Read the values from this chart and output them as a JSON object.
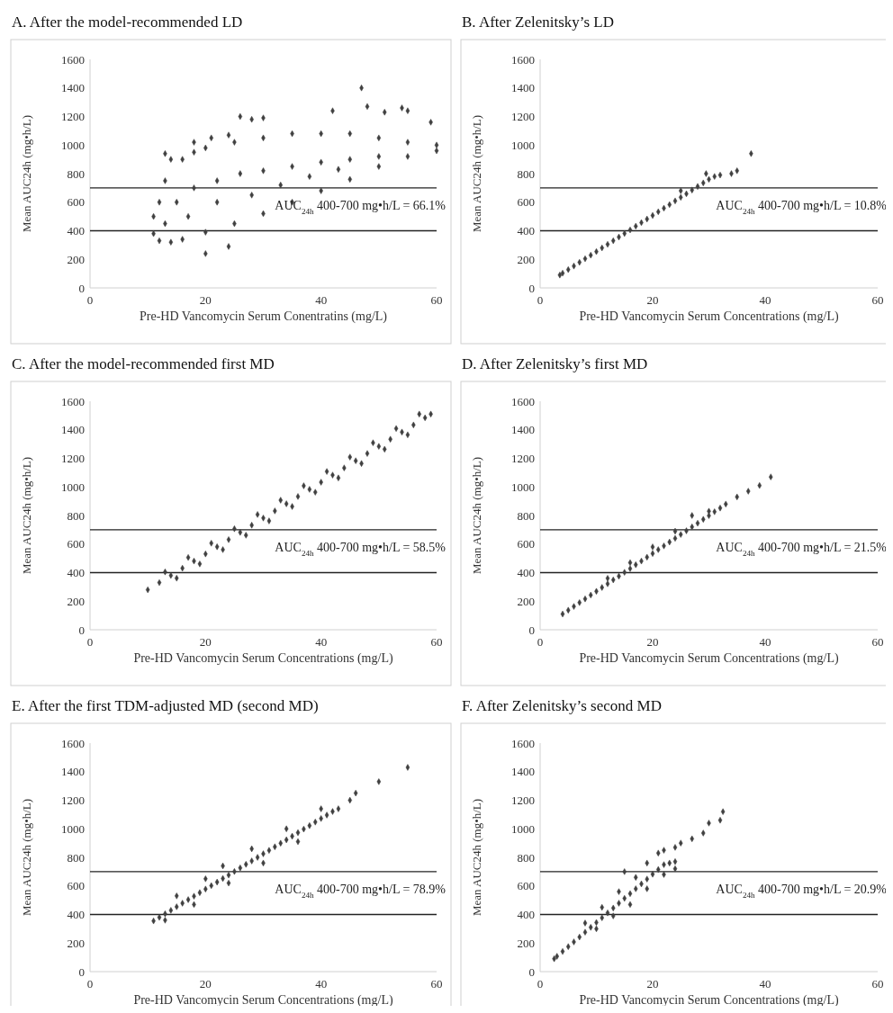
{
  "chart_data": [
    {
      "type": "scatter",
      "title": "A.  After the model-recommended LD",
      "xlabel": "Pre-HD Vancomycin Serum Conentratins (mg/L)",
      "ylabel": "Mean AUC24h (mg•h/L)",
      "xlim": [
        0,
        60
      ],
      "xticks": [
        0,
        20,
        40,
        60
      ],
      "ylim": [
        0,
        1600
      ],
      "yticks": [
        0,
        200,
        400,
        600,
        800,
        1000,
        1200,
        1400,
        1600
      ],
      "marker": "diamond",
      "grid": false,
      "annotations": [
        "AUC$_{24h}$ 400-700 mg•h/L = 66.1%"
      ],
      "ref_lines": [
        {
          "axis": "y",
          "value": 700,
          "color": "#222222"
        },
        {
          "axis": "y",
          "value": 400,
          "color": "#222222"
        }
      ],
      "series": [
        {
          "color": "#404040",
          "x": [
            11,
            12,
            14,
            16,
            20,
            25,
            30,
            35,
            40,
            45,
            50,
            55,
            60,
            11,
            12,
            13,
            14,
            16,
            18,
            20,
            25,
            30,
            35,
            40,
            45,
            50,
            55,
            60,
            20,
            24,
            47,
            26,
            28,
            30,
            42,
            48,
            51,
            54,
            55,
            59,
            18,
            21,
            24,
            13,
            15,
            18,
            22,
            26,
            30,
            35,
            40,
            45,
            50,
            13,
            17,
            22,
            28,
            33,
            38,
            43
          ],
          "values": [
            380,
            330,
            320,
            340,
            390,
            450,
            520,
            600,
            680,
            760,
            850,
            920,
            960,
            500,
            600,
            750,
            900,
            900,
            950,
            980,
            1020,
            1050,
            1080,
            1080,
            1080,
            1050,
            1020,
            1000,
            240,
            290,
            1400,
            1200,
            1180,
            1190,
            1240,
            1270,
            1230,
            1260,
            1240,
            1160,
            1020,
            1050,
            1070,
            940,
            600,
            700,
            750,
            800,
            820,
            850,
            880,
            900,
            920,
            450,
            500,
            600,
            650,
            720,
            780,
            830
          ]
        }
      ]
    },
    {
      "type": "scatter",
      "title": "B.  After Zelenitsky’s LD",
      "xlabel": "Pre-HD Vancomycin Serum Concentrations (mg/L)",
      "ylabel": "Mean AUC24h (mg•h/L)",
      "xlim": [
        0,
        60
      ],
      "xticks": [
        0,
        20,
        40,
        60
      ],
      "ylim": [
        0,
        1600
      ],
      "yticks": [
        0,
        200,
        400,
        600,
        800,
        1000,
        1200,
        1400,
        1600
      ],
      "marker": "diamond",
      "grid": false,
      "annotations": [
        "AUC$_{24h}$ 400-700 mg•h/L = 10.8%"
      ],
      "ref_lines": [
        {
          "axis": "y",
          "value": 700,
          "color": "#222222"
        },
        {
          "axis": "y",
          "value": 400,
          "color": "#222222"
        }
      ],
      "series": [
        {
          "color": "#404040",
          "x": [
            3.5,
            4,
            5,
            6,
            7,
            8,
            9,
            10,
            11,
            12,
            13,
            14,
            15,
            16,
            17,
            18,
            19,
            20,
            21,
            22,
            23,
            24,
            25,
            26,
            27,
            28,
            29,
            30,
            31,
            32,
            34,
            35,
            37.5,
            29.5,
            25
          ],
          "values": [
            90,
            103,
            128,
            153,
            179,
            204,
            229,
            254,
            280,
            305,
            330,
            356,
            381,
            406,
            432,
            457,
            482,
            507,
            533,
            558,
            583,
            609,
            634,
            659,
            685,
            710,
            735,
            760,
            780,
            790,
            800,
            820,
            940,
            800,
            680
          ]
        }
      ]
    },
    {
      "type": "scatter",
      "title": "C.  After the model-recommended first MD",
      "xlabel": "Pre-HD Vancomycin Serum Concentrations (mg/L)",
      "ylabel": "Mean AUC24h (mg•h/L)",
      "xlim": [
        0,
        60
      ],
      "xticks": [
        0,
        20,
        40,
        60
      ],
      "ylim": [
        0,
        1600
      ],
      "yticks": [
        0,
        200,
        400,
        600,
        800,
        1000,
        1200,
        1400,
        1600
      ],
      "marker": "diamond",
      "grid": false,
      "annotations": [
        "AUC$_{24h}$ 400-700 mg•h/L = 58.5%"
      ],
      "ref_lines": [
        {
          "axis": "y",
          "value": 700,
          "color": "#222222"
        },
        {
          "axis": "y",
          "value": 400,
          "color": "#222222"
        }
      ],
      "series": [
        {
          "color": "#404040",
          "x": [
            10,
            12,
            14,
            16,
            18,
            20,
            22,
            24,
            26,
            28,
            30,
            32,
            34,
            36,
            38,
            40,
            42,
            44,
            46,
            48,
            50,
            52,
            54,
            56,
            58,
            59,
            13,
            17,
            21,
            25,
            29,
            33,
            37,
            41,
            45,
            49,
            53,
            57,
            15,
            19,
            23,
            27,
            31,
            35,
            39,
            43,
            47,
            51,
            55
          ],
          "values": [
            280,
            330,
            380,
            431,
            481,
            531,
            581,
            631,
            682,
            732,
            782,
            832,
            882,
            933,
            983,
            1033,
            1083,
            1133,
            1183,
            1234,
            1284,
            1334,
            1384,
            1434,
            1484,
            1510,
            405,
            506,
            606,
            707,
            807,
            907,
            1008,
            1108,
            1209,
            1309,
            1409,
            1510,
            361,
            461,
            561,
            662,
            762,
            863,
            963,
            1063,
            1164,
            1264,
            1365
          ]
        }
      ]
    },
    {
      "type": "scatter",
      "title": "D.  After Zelenitsky’s first MD",
      "xlabel": "Pre-HD Vancomycin Serum Concentrations (mg/L)",
      "ylabel": "Mean AUC24h (mg•h/L)",
      "xlim": [
        0,
        60
      ],
      "xticks": [
        0,
        20,
        40,
        60
      ],
      "ylim": [
        0,
        1600
      ],
      "yticks": [
        0,
        200,
        400,
        600,
        800,
        1000,
        1200,
        1400,
        1600
      ],
      "marker": "diamond",
      "grid": false,
      "annotations": [
        "AUC$_{24h}$ 400-700 mg•h/L = 21.5%"
      ],
      "ref_lines": [
        {
          "axis": "y",
          "value": 700,
          "color": "#222222"
        },
        {
          "axis": "y",
          "value": 400,
          "color": "#222222"
        }
      ],
      "series": [
        {
          "color": "#404040",
          "x": [
            4,
            5,
            6,
            7,
            8,
            9,
            10,
            11,
            12,
            13,
            14,
            15,
            16,
            17,
            18,
            19,
            20,
            21,
            22,
            23,
            24,
            25,
            26,
            27,
            28,
            29,
            30,
            31,
            32,
            33,
            12,
            16,
            20,
            24,
            27,
            30,
            35,
            37,
            39,
            41
          ],
          "values": [
            110,
            137,
            163,
            190,
            216,
            243,
            269,
            296,
            322,
            349,
            375,
            402,
            428,
            455,
            481,
            508,
            534,
            561,
            587,
            614,
            640,
            667,
            693,
            720,
            746,
            773,
            799,
            826,
            852,
            880,
            360,
            470,
            580,
            690,
            800,
            830,
            930,
            970,
            1010,
            1070
          ]
        }
      ]
    },
    {
      "type": "scatter",
      "title": "E.  After the first TDM-adjusted MD (second MD)",
      "xlabel": "Pre-HD Vancomycin Serum Concentrations (mg/L)",
      "ylabel": "Mean AUC24h (mg•h/L)",
      "xlim": [
        0,
        60
      ],
      "xticks": [
        0,
        20,
        40,
        60
      ],
      "ylim": [
        0,
        1600
      ],
      "yticks": [
        0,
        200,
        400,
        600,
        800,
        1000,
        1200,
        1400,
        1600
      ],
      "marker": "diamond",
      "grid": false,
      "annotations": [
        "AUC$_{24h}$ 400-700 mg•h/L = 78.9%"
      ],
      "ref_lines": [
        {
          "axis": "y",
          "value": 700,
          "color": "#222222"
        },
        {
          "axis": "y",
          "value": 400,
          "color": "#222222"
        }
      ],
      "series": [
        {
          "color": "#404040",
          "x": [
            11,
            12,
            13,
            14,
            15,
            16,
            17,
            18,
            19,
            20,
            21,
            22,
            23,
            24,
            25,
            26,
            27,
            28,
            29,
            30,
            31,
            32,
            33,
            34,
            35,
            36,
            37,
            38,
            39,
            40,
            41,
            42,
            43,
            15,
            20,
            23,
            28,
            34,
            40,
            13,
            18,
            24,
            30,
            36,
            45,
            46,
            50,
            55
          ],
          "values": [
            355,
            380,
            405,
            429,
            454,
            479,
            504,
            528,
            553,
            578,
            602,
            627,
            652,
            676,
            701,
            726,
            751,
            775,
            800,
            825,
            849,
            874,
            899,
            923,
            948,
            973,
            998,
            1022,
            1047,
            1072,
            1096,
            1121,
            1140,
            530,
            650,
            740,
            860,
            1000,
            1140,
            360,
            470,
            620,
            760,
            910,
            1200,
            1250,
            1330,
            1430
          ]
        }
      ]
    },
    {
      "type": "scatter",
      "title": "F.  After Zelenitsky’s second MD",
      "xlabel": "Pre-HD Vancomycin Serum Concentrations (mg/L)",
      "ylabel": "Mean AUC24h (mg•h/L)",
      "xlim": [
        0,
        60
      ],
      "xticks": [
        0,
        20,
        40,
        60
      ],
      "ylim": [
        0,
        1600
      ],
      "yticks": [
        0,
        200,
        400,
        600,
        800,
        1000,
        1200,
        1400,
        1600
      ],
      "marker": "diamond",
      "grid": false,
      "annotations": [
        "AUC$_{24h}$ 400-700 mg•h/L = 20.9%"
      ],
      "ref_lines": [
        {
          "axis": "y",
          "value": 700,
          "color": "#222222"
        },
        {
          "axis": "y",
          "value": 400,
          "color": "#222222"
        }
      ],
      "series": [
        {
          "color": "#404040",
          "x": [
            2.5,
            3,
            4,
            5,
            6,
            7,
            8,
            9,
            10,
            11,
            12,
            13,
            14,
            15,
            16,
            17,
            18,
            19,
            20,
            21,
            22,
            23,
            24,
            8,
            11,
            14,
            17,
            19,
            21,
            22,
            10,
            13,
            16,
            19,
            22,
            24,
            24,
            25,
            27,
            29,
            30,
            32,
            32.5,
            15
          ],
          "values": [
            90,
            107,
            141,
            175,
            208,
            242,
            276,
            310,
            344,
            377,
            411,
            445,
            479,
            513,
            546,
            580,
            614,
            648,
            682,
            715,
            749,
            760,
            770,
            340,
            450,
            560,
            660,
            760,
            830,
            850,
            300,
            390,
            470,
            580,
            680,
            720,
            870,
            900,
            930,
            970,
            1040,
            1060,
            1120,
            700
          ]
        }
      ]
    }
  ]
}
